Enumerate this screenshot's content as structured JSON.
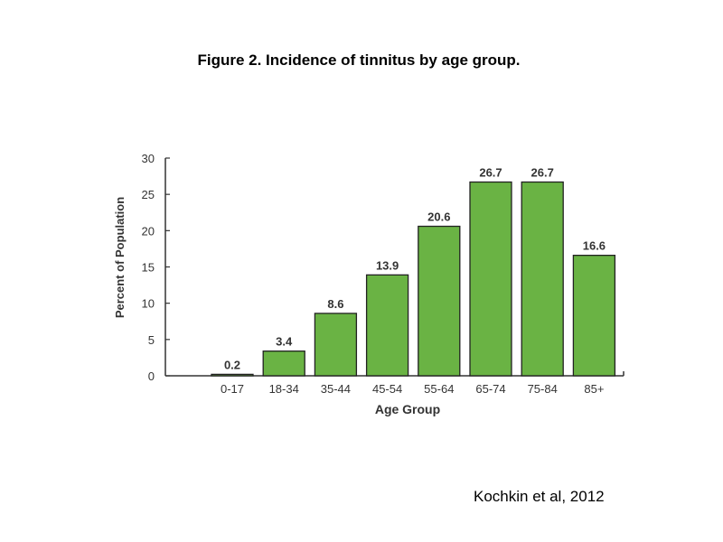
{
  "title": "Figure 2. Incidence of tinnitus by age group.",
  "source": "Kochkin et al, 2012",
  "colors": {
    "bar": "#6ab344",
    "bar_stroke": "#222222",
    "axis": "#333333"
  },
  "chart_data": {
    "type": "bar",
    "categories": [
      "0-17",
      "18-34",
      "35-44",
      "45-54",
      "55-64",
      "65-74",
      "75-84",
      "85+"
    ],
    "values": [
      0.2,
      3.4,
      8.6,
      13.9,
      20.6,
      26.7,
      26.7,
      16.6
    ],
    "data_labels": [
      "0.2",
      "3.4",
      "8.6",
      "13.9",
      "20.6",
      "26.7",
      "26.7",
      "16.6"
    ],
    "title": "",
    "xlabel": "Age Group",
    "ylabel": "Percent of Population",
    "ylim": [
      0,
      30
    ],
    "yticks": [
      0,
      5,
      10,
      15,
      20,
      25,
      30
    ],
    "grid": false,
    "legend": false
  }
}
